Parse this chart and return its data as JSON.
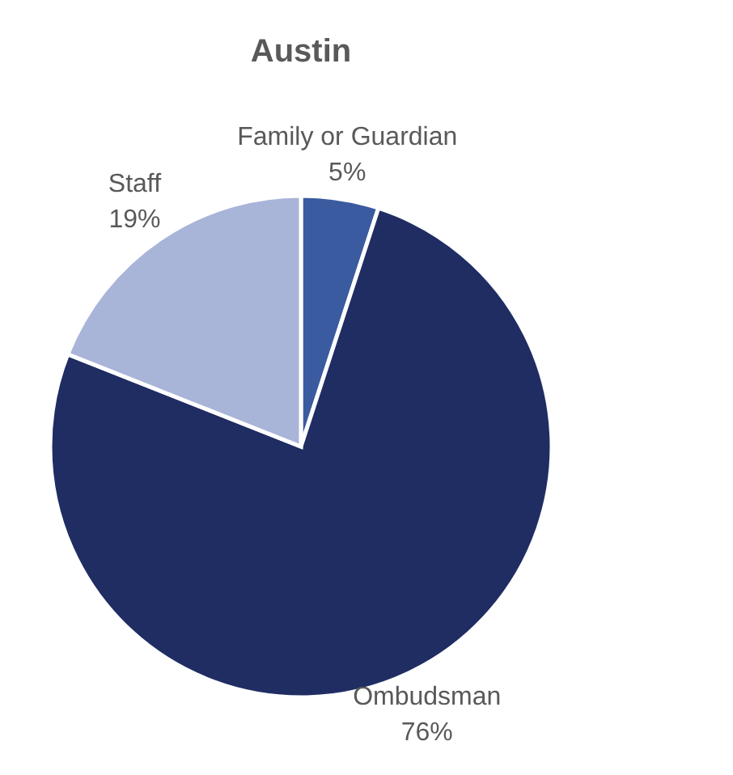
{
  "chart_data": {
    "type": "pie",
    "title": "Austin",
    "categories": [
      "Family or Guardian",
      "Ombudsman",
      "Staff"
    ],
    "values": [
      5,
      76,
      19
    ],
    "colors": [
      "#3a5ba0",
      "#1f2d63",
      "#a9b4d9"
    ],
    "value_labels": [
      "5%",
      "76%",
      "19%"
    ]
  }
}
